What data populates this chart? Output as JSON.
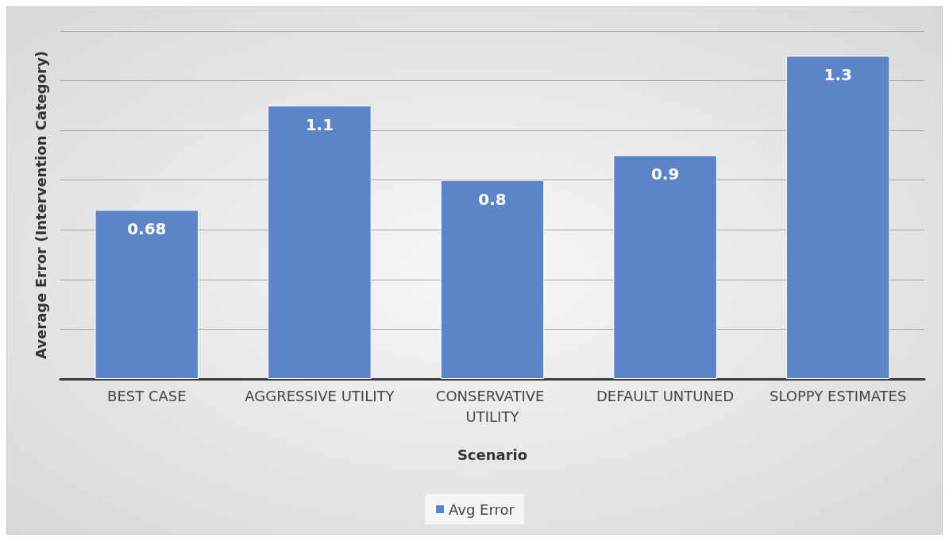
{
  "chart_data": {
    "type": "bar",
    "xlabel": "Scenario",
    "ylabel": "Average Error (Intervention Category)",
    "categories": [
      "BEST CASE",
      "AGGRESSIVE UTILITY",
      "CONSERVATIVE UTILITY",
      "DEFAULT UNTUNED",
      "SLOPPY ESTIMATES"
    ],
    "series": [
      {
        "name": "Avg Error",
        "color": "#5b84c9",
        "values": [
          0.68,
          1.1,
          0.8,
          0.9,
          1.3
        ]
      }
    ],
    "ylim": [
      0,
      1.4
    ],
    "yticks": [
      {
        "value": 0,
        "label": null
      },
      {
        "value": 0.2,
        "label": null
      },
      {
        "value": 0.4,
        "label": null
      },
      {
        "value": 0.6,
        "label": null
      },
      {
        "value": 0.8,
        "label": null
      },
      {
        "value": 1,
        "label": null
      },
      {
        "value": 1.2,
        "label": null
      },
      {
        "value": 1.4,
        "label": null
      }
    ],
    "tick_labels": "x",
    "grid": "y",
    "legend": "bottom",
    "data_labels": true
  }
}
